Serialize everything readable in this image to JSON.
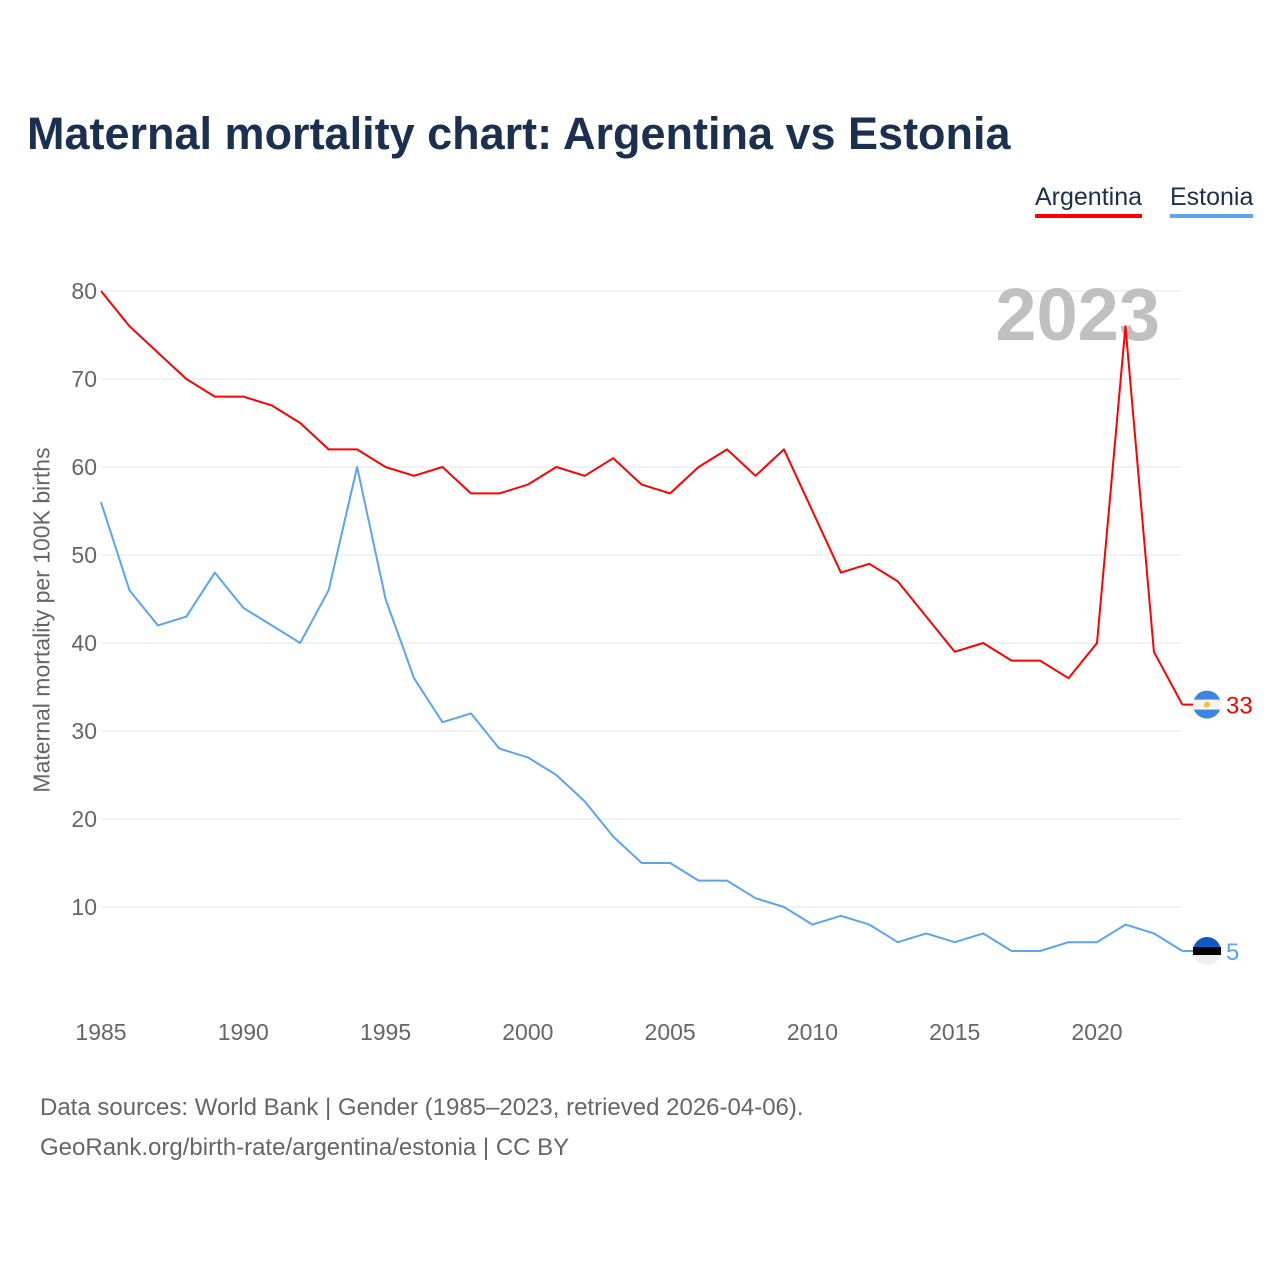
{
  "colors": {
    "argentina": "#ff0000",
    "estonia": "#5aa5ec",
    "grid": "#e6e6e6",
    "year_watermark": "#c0c0c0"
  },
  "chart_data": {
    "type": "line",
    "title": "Maternal mortality chart: Argentina vs Estonia",
    "ylabel": "Maternal mortality per 100K births",
    "xlabel": "",
    "year_label": "2023",
    "xlim": [
      1985,
      2023
    ],
    "ylim": [
      0,
      80
    ],
    "x_ticks": [
      1985,
      1990,
      1995,
      2000,
      2005,
      2010,
      2015,
      2020
    ],
    "y_ticks": [
      10,
      20,
      30,
      40,
      50,
      60,
      70,
      80
    ],
    "grid": true,
    "legend_position": "top-right",
    "x": [
      1985,
      1986,
      1987,
      1988,
      1989,
      1990,
      1991,
      1992,
      1993,
      1994,
      1995,
      1996,
      1997,
      1998,
      1999,
      2000,
      2001,
      2002,
      2003,
      2004,
      2005,
      2006,
      2007,
      2008,
      2009,
      2010,
      2011,
      2012,
      2013,
      2014,
      2015,
      2016,
      2017,
      2018,
      2019,
      2020,
      2021,
      2022,
      2023
    ],
    "series": [
      {
        "name": "Argentina",
        "end_label": "33",
        "values": [
          80,
          76,
          73,
          70,
          68,
          68,
          67,
          65,
          62,
          62,
          60,
          59,
          60,
          57,
          57,
          58,
          60,
          59,
          61,
          58,
          57,
          60,
          62,
          59,
          62,
          55,
          48,
          49,
          47,
          43,
          39,
          40,
          38,
          38,
          36,
          40,
          76,
          39,
          33
        ]
      },
      {
        "name": "Estonia",
        "end_label": "5",
        "values": [
          56,
          46,
          42,
          43,
          48,
          44,
          42,
          40,
          46,
          60,
          45,
          36,
          31,
          32,
          28,
          27,
          25,
          22,
          18,
          15,
          15,
          13,
          13,
          11,
          10,
          8,
          9,
          8,
          6,
          7,
          6,
          7,
          5,
          5,
          6,
          6,
          8,
          7,
          5
        ]
      }
    ]
  },
  "footer": {
    "line1": "Data sources: World Bank | Gender (1985–2023, retrieved 2026-04-06).",
    "line2": "GeoRank.org/birth-rate/argentina/estonia | CC BY"
  }
}
